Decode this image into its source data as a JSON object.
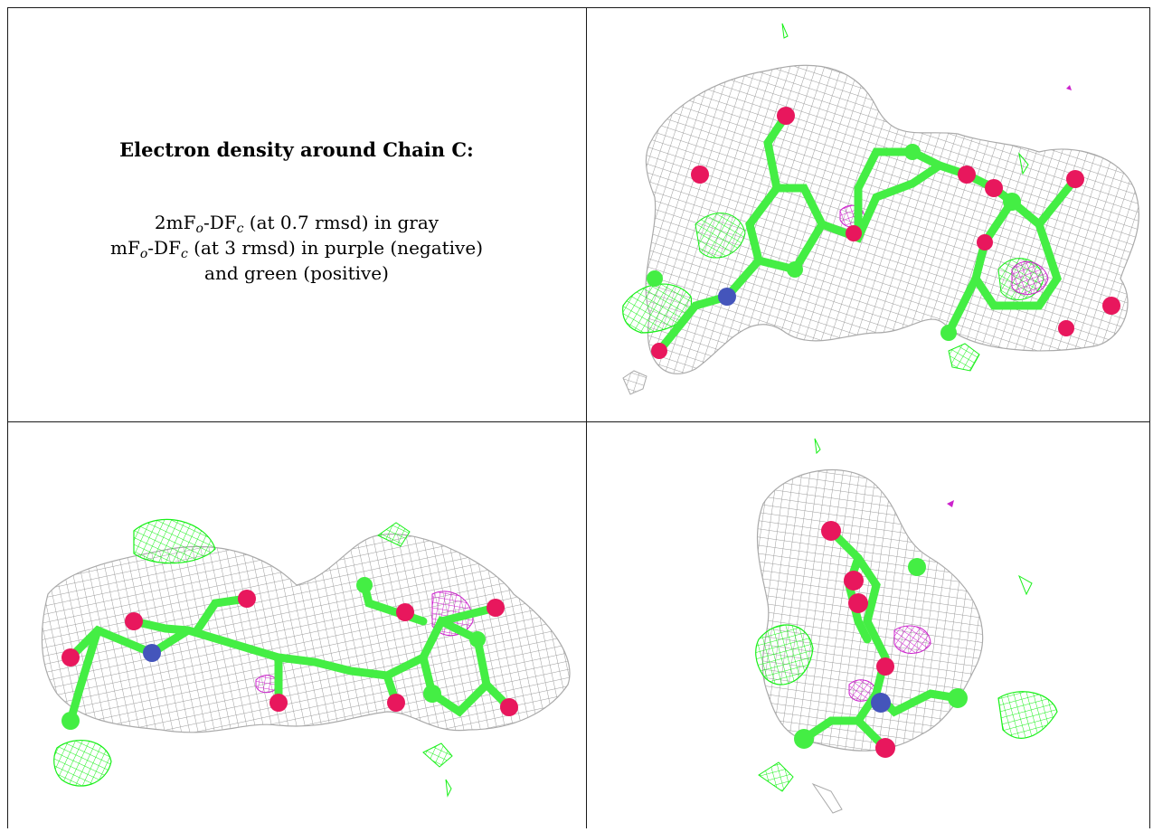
{
  "caption": {
    "title": "Electron density around Chain C:",
    "line1": {
      "pre": "2mF",
      "sub1": "o",
      "mid": "-DF",
      "sub2": "c",
      "post": " (at 0.7 rmsd) in gray"
    },
    "line2": {
      "pre": "mF",
      "sub1": "o",
      "mid": "-DF",
      "sub2": "c",
      "post": " (at 3 rmsd) in purple (negative)"
    },
    "line3": "and green (positive)"
  },
  "colors": {
    "mesh_2fofc": "#9c9c9c",
    "mesh_positive": "#18f018",
    "mesh_negative": "#cc22cc",
    "carbon": "#44ee44",
    "oxygen": "#e8175d",
    "nitrogen": "#4455bb",
    "border": "#1a1a1a"
  }
}
